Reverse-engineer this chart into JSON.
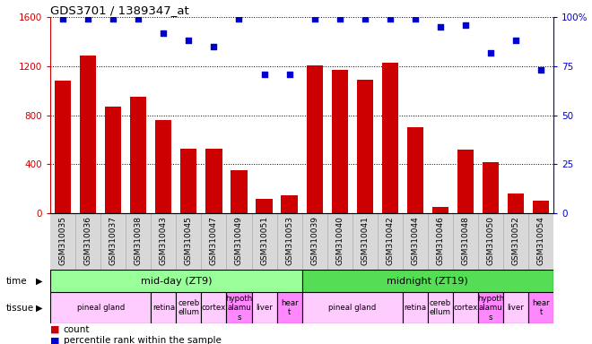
{
  "title": "GDS3701 / 1389347_at",
  "samples": [
    "GSM310035",
    "GSM310036",
    "GSM310037",
    "GSM310038",
    "GSM310043",
    "GSM310045",
    "GSM310047",
    "GSM310049",
    "GSM310051",
    "GSM310053",
    "GSM310039",
    "GSM310040",
    "GSM310041",
    "GSM310042",
    "GSM310044",
    "GSM310046",
    "GSM310048",
    "GSM310050",
    "GSM310052",
    "GSM310054"
  ],
  "counts": [
    1080,
    1290,
    870,
    950,
    760,
    530,
    530,
    350,
    115,
    150,
    1210,
    1170,
    1090,
    1230,
    700,
    55,
    520,
    420,
    165,
    100
  ],
  "percentile": [
    99,
    99,
    99,
    99,
    92,
    88,
    85,
    99,
    71,
    71,
    99,
    99,
    99,
    99,
    99,
    95,
    96,
    82,
    88,
    73
  ],
  "bar_color": "#cc0000",
  "dot_color": "#0000cc",
  "ylim_left": [
    0,
    1600
  ],
  "ylim_right": [
    0,
    100
  ],
  "yticks_left": [
    0,
    400,
    800,
    1200,
    1600
  ],
  "yticks_right": [
    0,
    25,
    50,
    75,
    100
  ],
  "ytick_labels_right": [
    "0",
    "25",
    "50",
    "75",
    "100%"
  ],
  "time_groups": [
    {
      "label": "mid-day (ZT9)",
      "start": 0,
      "end": 10,
      "color": "#99ff99"
    },
    {
      "label": "midnight (ZT19)",
      "start": 10,
      "end": 20,
      "color": "#55dd55"
    }
  ],
  "tissue_groups": [
    {
      "label": "pineal gland",
      "start": 0,
      "end": 4,
      "color": "#ffccff",
      "narrow": false
    },
    {
      "label": "retina",
      "start": 4,
      "end": 5,
      "color": "#ffccff",
      "narrow": true
    },
    {
      "label": "cereb\nellum",
      "start": 5,
      "end": 6,
      "color": "#ffccff",
      "narrow": true
    },
    {
      "label": "cortex",
      "start": 6,
      "end": 7,
      "color": "#ffccff",
      "narrow": true
    },
    {
      "label": "hypoth\nalamu\ns",
      "start": 7,
      "end": 8,
      "color": "#ff88ff",
      "narrow": true
    },
    {
      "label": "liver",
      "start": 8,
      "end": 9,
      "color": "#ffccff",
      "narrow": true
    },
    {
      "label": "hear\nt",
      "start": 9,
      "end": 10,
      "color": "#ff88ff",
      "narrow": true
    },
    {
      "label": "pineal gland",
      "start": 10,
      "end": 14,
      "color": "#ffccff",
      "narrow": false
    },
    {
      "label": "retina",
      "start": 14,
      "end": 15,
      "color": "#ffccff",
      "narrow": true
    },
    {
      "label": "cereb\nellum",
      "start": 15,
      "end": 16,
      "color": "#ffccff",
      "narrow": true
    },
    {
      "label": "cortex",
      "start": 16,
      "end": 17,
      "color": "#ffccff",
      "narrow": true
    },
    {
      "label": "hypoth\nalamu\ns",
      "start": 17,
      "end": 18,
      "color": "#ff88ff",
      "narrow": true
    },
    {
      "label": "liver",
      "start": 18,
      "end": 19,
      "color": "#ffccff",
      "narrow": true
    },
    {
      "label": "hear\nt",
      "start": 19,
      "end": 20,
      "color": "#ff88ff",
      "narrow": true
    }
  ],
  "bg_color": "#ffffff",
  "tick_label_color_left": "#cc0000",
  "tick_label_color_right": "#0000cc",
  "xtick_bg": "#d8d8d8"
}
